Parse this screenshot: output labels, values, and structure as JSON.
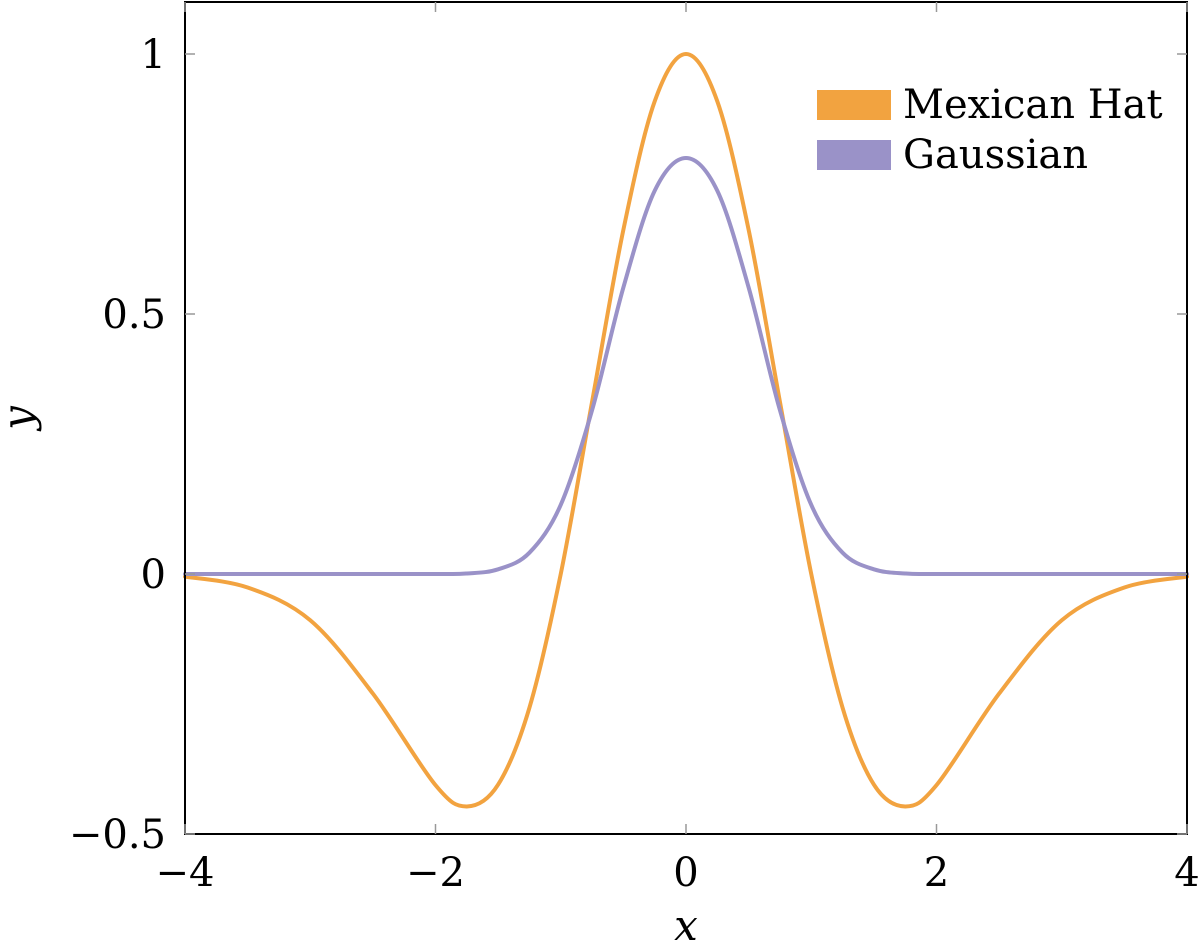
{
  "chart_data": {
    "type": "line",
    "title": "",
    "xlabel": "x",
    "ylabel": "y",
    "xlim": [
      -4,
      4
    ],
    "ylim": [
      -0.5,
      1.1
    ],
    "x_ticks": [
      {
        "value": -4,
        "label": "−4"
      },
      {
        "value": -2,
        "label": "−2"
      },
      {
        "value": 0,
        "label": "0"
      },
      {
        "value": 2,
        "label": "2"
      },
      {
        "value": 4,
        "label": "4"
      }
    ],
    "y_ticks": [
      {
        "value": -0.5,
        "label": "−0.5"
      },
      {
        "value": 0,
        "label": "0"
      },
      {
        "value": 0.5,
        "label": "0.5"
      },
      {
        "value": 1,
        "label": "1"
      }
    ],
    "grid": false,
    "legend_position": "top-right",
    "series": [
      {
        "name": "Mexican Hat",
        "color": "#F2A340",
        "x": [
          -4,
          -3.5,
          -3,
          -2.5,
          -2,
          -1.75,
          -1.5,
          -1.25,
          -1,
          -0.75,
          -0.5,
          -0.25,
          0,
          0.25,
          0.5,
          0.75,
          1,
          1.25,
          1.5,
          1.75,
          2,
          2.5,
          3,
          3.5,
          4
        ],
        "y": [
          -0.005,
          -0.026,
          -0.089,
          -0.23,
          -0.406,
          -0.447,
          -0.405,
          -0.257,
          0.0,
          0.331,
          0.662,
          0.909,
          1.0,
          0.909,
          0.662,
          0.331,
          0.0,
          -0.257,
          -0.405,
          -0.447,
          -0.406,
          -0.23,
          -0.089,
          -0.026,
          -0.005
        ]
      },
      {
        "name": "Gaussian",
        "color": "#9A92C8",
        "x": [
          -4,
          -3,
          -2,
          -1.75,
          -1.5,
          -1.25,
          -1,
          -0.75,
          -0.5,
          -0.25,
          0,
          0.25,
          0.5,
          0.75,
          1,
          1.25,
          1.5,
          1.75,
          2,
          3,
          4
        ],
        "y": [
          0.0,
          0.0,
          0.0,
          0.001,
          0.009,
          0.041,
          0.133,
          0.315,
          0.551,
          0.737,
          0.8,
          0.737,
          0.551,
          0.315,
          0.133,
          0.041,
          0.009,
          0.001,
          0.0,
          0.0,
          0.0
        ]
      }
    ]
  }
}
